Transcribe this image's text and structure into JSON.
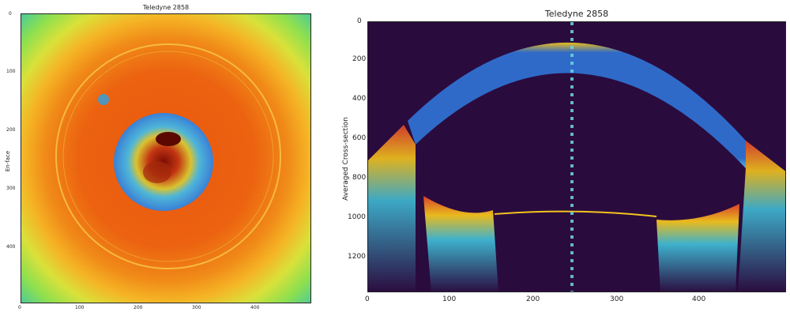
{
  "left_panel": {
    "title": "Teledyne 2858",
    "ylabel": "En-face",
    "xticks": [
      "0",
      "100",
      "200",
      "300",
      "400"
    ],
    "yticks": [
      "0",
      "100",
      "200",
      "300",
      "400"
    ],
    "colormap": "jet",
    "colors": {
      "outer": "#8fe04e",
      "mid": "#f5a31c",
      "core": "#e9590f",
      "disk": "#3a80d6",
      "pupil": "#7a0d05"
    }
  },
  "right_panel": {
    "title": "Teledyne 2858",
    "ylabel": "Averaged Cross-section",
    "xticks": [
      "0",
      "100",
      "200",
      "300",
      "400"
    ],
    "yticks": [
      "0",
      "200",
      "400",
      "600",
      "800",
      "1000",
      "1200"
    ],
    "colormap": "turbo",
    "colors": {
      "background": "#2a0b3e",
      "cornea": "#2f6fd0",
      "edge": "#f2c41c",
      "lens": "#e3432a"
    }
  }
}
